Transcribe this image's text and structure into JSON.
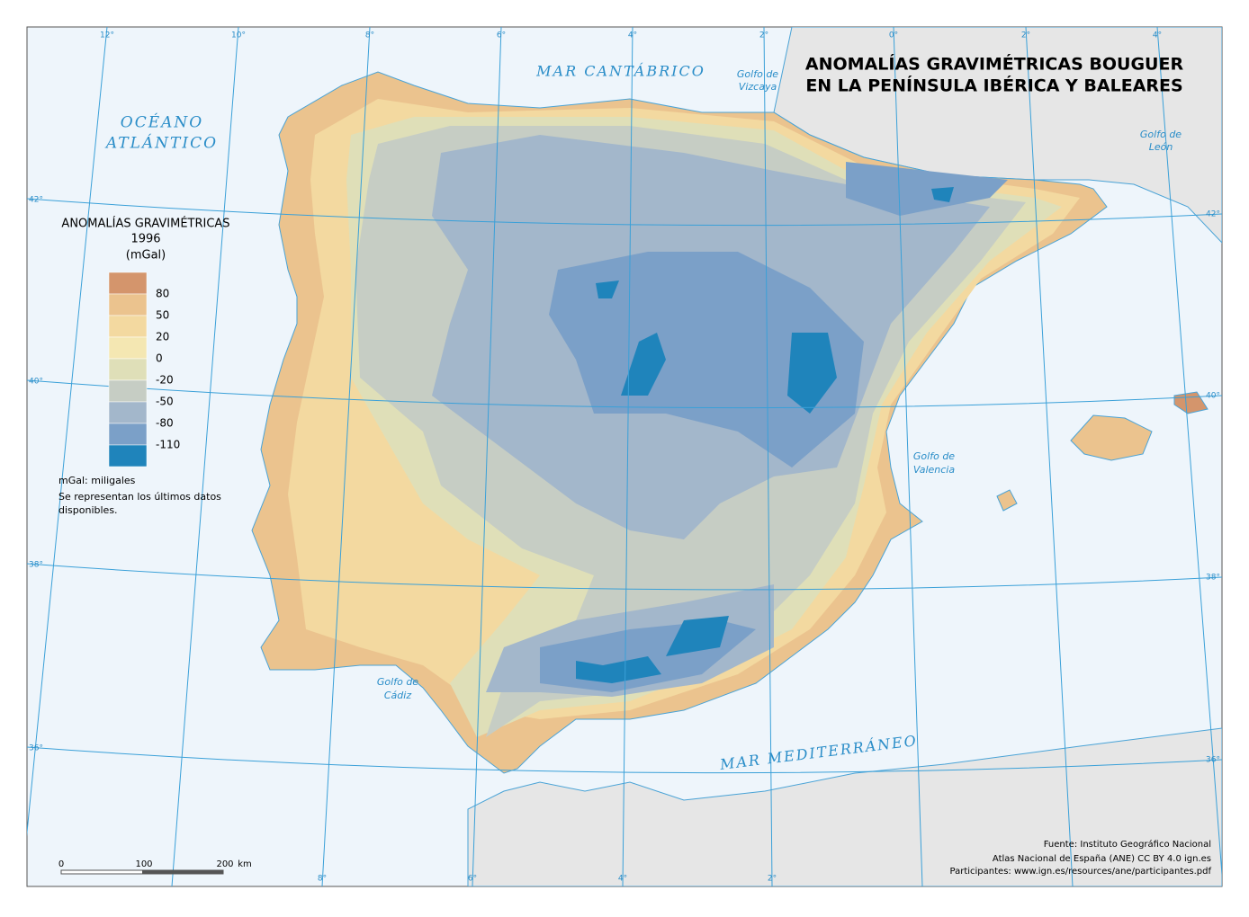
{
  "header": {
    "title_lines": [
      "ANOMALÍAS GRAVIMÉTRICAS BOUGUER",
      "EN LA PENÍNSULA IBÉRICA Y BALEARES"
    ]
  },
  "place_labels": {
    "mar_cantabrico": "MAR CANTÁBRICO",
    "golfo_vizcaya": [
      "Golfo de",
      "Vizcaya"
    ],
    "oceano_atlantico": [
      "OCÉANO",
      "ATLÁNTICO"
    ],
    "golfo_leon": [
      "Golfo de",
      "León"
    ],
    "golfo_valencia": [
      "Golfo de",
      "Valencia"
    ],
    "golfo_cadiz": [
      "Golfo de",
      "Cádiz"
    ],
    "mar_mediterraneo": "MAR MEDITERRÁNEO"
  },
  "graticule": {
    "top": [
      "12°",
      "10°",
      "8°",
      "6°",
      "4°",
      "2°",
      "0°",
      "2°",
      "4°"
    ],
    "bottom": [
      "8°",
      "6°",
      "4°",
      "2°"
    ],
    "left": [
      "42°",
      "40°",
      "38°",
      "36°"
    ],
    "right": [
      "42°",
      "40°",
      "38°",
      "36°"
    ]
  },
  "legend": {
    "title_lines": [
      "ANOMALÍAS GRAVIMÉTRICAS",
      "1996",
      "(mGal)"
    ],
    "labels": [
      "80",
      "50",
      "20",
      "0",
      "-20",
      "-50",
      "-80",
      "-110"
    ],
    "colors": [
      "#d4956c",
      "#ebc38e",
      "#f3d9a0",
      "#f4e7b2",
      "#dfdfb8",
      "#c6cdc4",
      "#a3b7cb",
      "#7ba0c8",
      "#1f84bb"
    ]
  },
  "notes": [
    "mGal: miligales",
    "Se representan los últimos datos",
    "disponibles."
  ],
  "scale": {
    "labels": [
      "0",
      "100",
      "200",
      "km"
    ]
  },
  "source": [
    "Fuente: Instituto Geográfico Nacional",
    "Atlas Nacional de España (ANE) CC BY 4.0 ign.es",
    "Participantes: www.ign.es/resources/ane/participantes.pdf"
  ]
}
